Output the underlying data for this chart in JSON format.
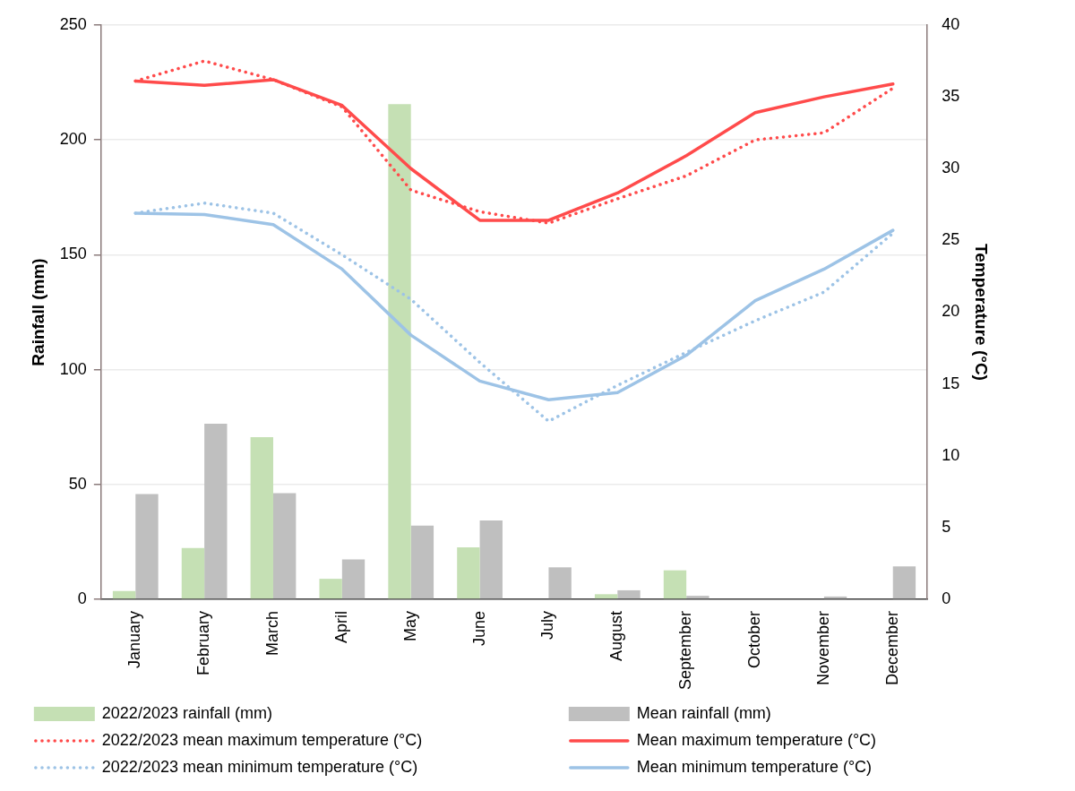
{
  "chart_data": {
    "type": "bar",
    "ylabel": "Rainfall (mm)",
    "y2label": "Temperature (°C)",
    "categories": [
      "January",
      "February",
      "March",
      "April",
      "May",
      "June",
      "July",
      "August",
      "September",
      "October",
      "November",
      "December"
    ],
    "ylim": [
      0,
      250
    ],
    "yticks": [
      0,
      50,
      100,
      150,
      200,
      250
    ],
    "y2lim": [
      0,
      40
    ],
    "y2ticks": [
      0,
      5,
      10,
      15,
      20,
      25,
      30,
      35,
      40
    ],
    "grid": "y",
    "legend": "bottom",
    "series": [
      {
        "name": "2022/2023 rainfall (mm)",
        "color": "#c5e0b4",
        "values": [
          3.6,
          22.3,
          70.6,
          8.9,
          215.6,
          22.6,
          0,
          2.2,
          12.6,
          0,
          0,
          0
        ]
      },
      {
        "name": "Mean rainfall (mm)",
        "color": "#bfbfbf",
        "values": [
          45.8,
          76.4,
          46.2,
          17.3,
          32.1,
          34.3,
          13.9,
          3.9,
          1.5,
          0,
          1.2,
          14.3
        ]
      },
      {
        "name": "2022/2023 mean maximum temperature (°C)",
        "type": "line",
        "axis": "y2",
        "line_style": "dotted",
        "color": "#ff4b4b",
        "values": [
          36.1,
          37.5,
          36.2,
          34.3,
          28.5,
          27.0,
          26.2,
          27.9,
          29.5,
          32.0,
          32.5,
          35.6
        ]
      },
      {
        "name": "Mean maximum temperature (°C)",
        "type": "line",
        "axis": "y2",
        "line_style": "solid",
        "color": "#ff4b4b",
        "values": [
          36.1,
          35.8,
          36.2,
          34.4,
          30.0,
          26.4,
          26.4,
          28.3,
          30.9,
          33.9,
          35.0,
          35.9
        ]
      },
      {
        "name": "2022/2023 mean minimum temperature (°C)",
        "type": "line",
        "axis": "y2",
        "line_style": "dotted",
        "color": "#9dc3e6",
        "values": [
          26.9,
          27.6,
          26.9,
          24.0,
          20.9,
          16.5,
          12.4,
          14.9,
          17.2,
          19.4,
          21.4,
          25.5
        ]
      },
      {
        "name": "Mean minimum temperature (°C)",
        "type": "line",
        "axis": "y2",
        "line_style": "solid",
        "color": "#9dc3e6",
        "values": [
          26.9,
          26.8,
          26.1,
          23.0,
          18.4,
          15.2,
          13.9,
          14.4,
          17.0,
          20.8,
          23.0,
          25.7
        ]
      }
    ]
  }
}
